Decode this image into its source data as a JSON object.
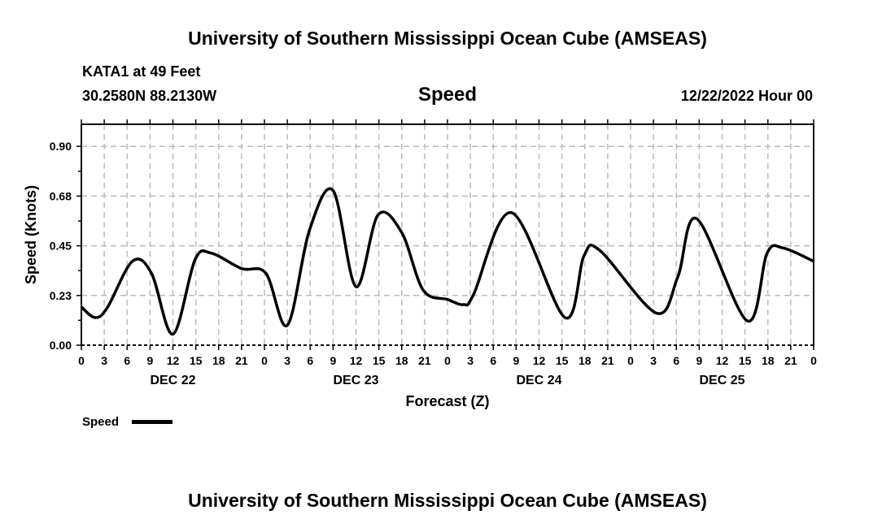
{
  "header": {
    "title": "University of Southern Mississippi Ocean Cube (AMSEAS)",
    "station": "KATA1 at 49 Feet",
    "coords": "30.2580N  88.2130W",
    "variable": "Speed",
    "date": "12/22/2022 Hour 00"
  },
  "footer": {
    "title": "University of Southern Mississippi Ocean Cube (AMSEAS)"
  },
  "chart_data": {
    "type": "line",
    "title": "Speed",
    "xlabel": "Forecast (Z)",
    "ylabel": "Speed (Knots)",
    "xlim": [
      0,
      96
    ],
    "ylim": [
      0,
      1.0
    ],
    "grid": true,
    "legend": {
      "position": "bottom-left",
      "entries": [
        "Speed"
      ]
    },
    "y_ticks": [
      0,
      0.225,
      0.45,
      0.675,
      0.9
    ],
    "y_tick_labels": [
      "0.00",
      "0.23",
      "0.45",
      "0.68",
      "0.90"
    ],
    "x_ticks_hours": [
      0,
      3,
      6,
      9,
      12,
      15,
      18,
      21,
      24,
      27,
      30,
      33,
      36,
      39,
      42,
      45,
      48,
      51,
      54,
      57,
      60,
      63,
      66,
      69,
      72,
      75,
      78,
      81,
      84,
      87,
      90,
      93,
      96
    ],
    "x_tick_labels": [
      "0",
      "3",
      "6",
      "9",
      "12",
      "15",
      "18",
      "21",
      "0",
      "3",
      "6",
      "9",
      "12",
      "15",
      "18",
      "21",
      "0",
      "3",
      "6",
      "9",
      "12",
      "15",
      "18",
      "21",
      "0",
      "3",
      "6",
      "9",
      "12",
      "15",
      "18",
      "21",
      "0"
    ],
    "day_labels": [
      {
        "hour": 12,
        "label": "DEC 22"
      },
      {
        "hour": 36,
        "label": "DEC 23"
      },
      {
        "hour": 60,
        "label": "DEC 24"
      },
      {
        "hour": 84,
        "label": "DEC 25"
      }
    ],
    "series": [
      {
        "name": "Speed",
        "color": "#000000",
        "x": [
          0,
          1.8,
          3.4,
          6.7,
          9.2,
          12,
          14.9,
          17,
          21,
          24.2,
          27,
          29.9,
          33,
          36,
          38.9,
          42,
          44.8,
          48,
          50.1,
          51.4,
          56.4,
          63.4,
          65.9,
          68,
          75.4,
          78.2,
          80.7,
          87.3,
          89.9,
          92,
          96
        ],
        "y": [
          0.173,
          0.125,
          0.17,
          0.38,
          0.325,
          0.05,
          0.387,
          0.417,
          0.347,
          0.325,
          0.09,
          0.52,
          0.7,
          0.265,
          0.59,
          0.51,
          0.25,
          0.207,
          0.184,
          0.228,
          0.6,
          0.125,
          0.405,
          0.428,
          0.145,
          0.31,
          0.572,
          0.11,
          0.417,
          0.44,
          0.38
        ]
      }
    ]
  }
}
